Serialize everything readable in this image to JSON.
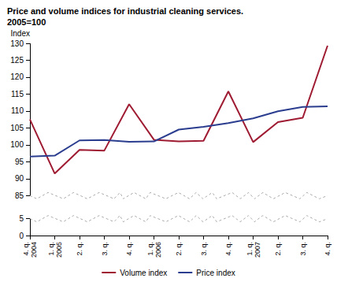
{
  "chart_data": {
    "type": "line",
    "title": "Price and volume indices for industrial cleaning services.\n2005=100",
    "ylabel": "Index",
    "categories": [
      "4. q.\n2004",
      "1. q.\n2005",
      "2. q.",
      "3. q.",
      "4. q.",
      "1. q.\n2006",
      "2. q.",
      "3. q.",
      "4. q.",
      "1. q.\n2007",
      "2. q.",
      "3. q.",
      "4. q."
    ],
    "series": [
      {
        "name": "Volume index",
        "color": "#9e1b32",
        "marker": "none",
        "line_style": "solid",
        "values": [
          107.5,
          91.5,
          98.5,
          98.3,
          112,
          101.5,
          101,
          101.2,
          115.8,
          100.8,
          106.7,
          108,
          129.3
        ]
      },
      {
        "name": "Price index",
        "color": "#2b3d8f",
        "marker": "none",
        "line_style": "solid",
        "values": [
          96.5,
          96.8,
          101.3,
          101.4,
          100.9,
          101,
          104.5,
          105.3,
          106.4,
          107.8,
          109.9,
          111.2,
          111.4
        ]
      }
    ],
    "ylim": [
      0,
      130
    ],
    "yticks": [
      0,
      5,
      85,
      90,
      95,
      100,
      105,
      110,
      115,
      120,
      125,
      130
    ],
    "grid": false,
    "legend": "bottom"
  }
}
